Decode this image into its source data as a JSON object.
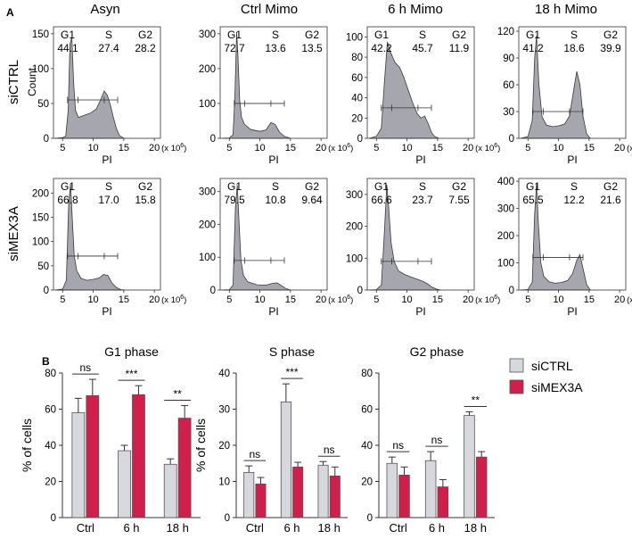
{
  "panel_labels": {
    "a": "A",
    "b": "B"
  },
  "column_titles": [
    "Asyn",
    "Ctrl Mimo",
    "6 h Mimo",
    "18 h Mimo"
  ],
  "row_labels": [
    {
      "main": "siCTRL",
      "sub": "Count"
    },
    {
      "main": "siMEX3A",
      "sub": ""
    }
  ],
  "phase_header": [
    "G1",
    "S",
    "G2"
  ],
  "x_axis_label": "PI",
  "x_multiplier": "(x 10",
  "x_multiplier_exp": "6",
  "x_multiplier_close": ")",
  "colors": {
    "histogram_fill": "#a6a6ae",
    "histogram_stroke": "#3a3a3a",
    "siCTRL": "#d7d7de",
    "siMEX3A": "#cf1f4a",
    "axis": "#333333"
  },
  "chart_data": [
    {
      "type": "area",
      "title": "Cell cycle flow cytometry histograms (PI staining)",
      "xlabel": "PI (x 10^6)",
      "ylabel": "Count",
      "x_ticks": [
        5,
        10,
        15,
        20
      ],
      "xlim": [
        3.5,
        21
      ],
      "panels": [
        {
          "row": "siCTRL",
          "column": "Asyn",
          "ylim": [
            0,
            160
          ],
          "y_ticks": [
            0,
            50,
            100,
            150
          ],
          "G1": "44.1",
          "S": "27.4",
          "G2": "28.2",
          "gate_y": 55,
          "x": [
            3.8,
            5.0,
            5.5,
            5.9,
            6.2,
            6.5,
            6.8,
            7.1,
            7.6,
            8.5,
            9.5,
            10.5,
            11.2,
            11.8,
            12.3,
            12.8,
            13.3,
            13.8,
            14.3,
            15.0
          ],
          "y": [
            0,
            1,
            3,
            40,
            135,
            145,
            80,
            40,
            30,
            33,
            36,
            42,
            55,
            68,
            62,
            48,
            30,
            14,
            4,
            0
          ]
        },
        {
          "row": "siCTRL",
          "column": "Ctrl Mimo",
          "ylim": [
            0,
            320
          ],
          "y_ticks": [
            0,
            100,
            200,
            300
          ],
          "G1": "72.7",
          "S": "13.6",
          "G2": "13.5",
          "gate_y": 100,
          "x": [
            3.8,
            5.0,
            5.6,
            5.9,
            6.2,
            6.4,
            6.7,
            7.0,
            7.5,
            8.5,
            10.0,
            11.0,
            11.8,
            12.5,
            13.2,
            14.0,
            15.0
          ],
          "y": [
            0,
            1,
            10,
            120,
            305,
            240,
            110,
            60,
            40,
            25,
            20,
            24,
            45,
            40,
            18,
            6,
            0
          ]
        },
        {
          "row": "siCTRL",
          "column": "6 h Mimo",
          "ylim": [
            0,
            110
          ],
          "y_ticks": [
            0,
            20,
            40,
            60,
            80,
            100
          ],
          "G1": "42.2",
          "S": "45.7",
          "G2": "11.9",
          "gate_y": 30,
          "x": [
            3.8,
            5.0,
            5.8,
            6.3,
            6.8,
            7.3,
            8.0,
            8.8,
            9.5,
            10.3,
            11.0,
            11.7,
            12.3,
            12.9,
            13.5,
            14.0,
            14.5,
            15.2
          ],
          "y": [
            0,
            2,
            10,
            55,
            95,
            85,
            75,
            70,
            60,
            46,
            34,
            24,
            20,
            22,
            14,
            6,
            2,
            0
          ]
        },
        {
          "row": "siCTRL",
          "column": "18 h Mimo",
          "ylim": [
            0,
            125
          ],
          "y_ticks": [
            0,
            30,
            60,
            90,
            120
          ],
          "G1": "41.2",
          "S": "18.6",
          "G2": "39.9",
          "gate_y": 30,
          "x": [
            3.8,
            5.0,
            5.7,
            6.1,
            6.4,
            6.8,
            7.3,
            8.0,
            9.0,
            10.0,
            11.0,
            11.8,
            12.5,
            13.0,
            13.5,
            14.0,
            14.6,
            15.2
          ],
          "y": [
            0,
            2,
            20,
            90,
            115,
            60,
            24,
            15,
            13,
            14,
            16,
            25,
            55,
            75,
            60,
            25,
            5,
            0
          ]
        },
        {
          "row": "siMEX3A",
          "column": "Asyn",
          "ylim": [
            0,
            230
          ],
          "y_ticks": [
            0,
            50,
            100,
            150,
            200
          ],
          "G1": "66.8",
          "S": "17.0",
          "G2": "15.8",
          "gate_y": 70,
          "x": [
            3.8,
            5.0,
            5.6,
            6.0,
            6.3,
            6.6,
            6.9,
            7.3,
            8.0,
            9.0,
            10.0,
            11.0,
            11.7,
            12.4,
            13.1,
            13.8,
            14.5,
            15.2
          ],
          "y": [
            0,
            2,
            20,
            180,
            218,
            140,
            70,
            40,
            24,
            20,
            22,
            25,
            32,
            30,
            14,
            5,
            1,
            0
          ]
        },
        {
          "row": "siMEX3A",
          "column": "Ctrl Mimo",
          "ylim": [
            0,
            340
          ],
          "y_ticks": [
            0,
            100,
            200,
            300
          ],
          "G1": "79.5",
          "S": "10.8",
          "G2": "9.64",
          "gate_y": 90,
          "x": [
            3.8,
            5.0,
            5.6,
            6.0,
            6.3,
            6.6,
            6.9,
            7.3,
            8.0,
            9.5,
            11.0,
            12.0,
            12.8,
            13.5,
            14.2,
            15.0
          ],
          "y": [
            0,
            1,
            15,
            250,
            320,
            200,
            90,
            45,
            25,
            16,
            15,
            20,
            22,
            14,
            5,
            0
          ]
        },
        {
          "row": "siMEX3A",
          "column": "6 h Mimo",
          "ylim": [
            0,
            350
          ],
          "y_ticks": [
            0,
            100,
            200,
            300
          ],
          "G1": "66.6",
          "S": "23.7",
          "G2": "7.55",
          "gate_y": 90,
          "x": [
            3.8,
            5.0,
            5.8,
            6.3,
            6.7,
            7.0,
            7.4,
            7.9,
            8.6,
            9.5,
            10.5,
            11.5,
            12.5,
            13.3,
            14.0,
            14.8,
            15.5
          ],
          "y": [
            0,
            1,
            15,
            180,
            330,
            260,
            150,
            90,
            60,
            50,
            42,
            35,
            28,
            20,
            10,
            3,
            0
          ]
        },
        {
          "row": "siMEX3A",
          "column": "18 h Mimo",
          "ylim": [
            0,
            410
          ],
          "y_ticks": [
            0,
            100,
            200,
            300,
            400
          ],
          "G1": "65.5",
          "S": "12.2",
          "G2": "21.6",
          "gate_y": 120,
          "x": [
            3.8,
            5.0,
            5.7,
            6.1,
            6.4,
            6.7,
            7.1,
            7.6,
            8.5,
            9.5,
            10.5,
            11.5,
            12.3,
            13.0,
            13.5,
            14.0,
            14.6,
            15.2
          ],
          "y": [
            0,
            2,
            30,
            280,
            390,
            250,
            100,
            50,
            30,
            25,
            28,
            35,
            60,
            110,
            130,
            80,
            20,
            0
          ]
        }
      ]
    },
    {
      "type": "bar",
      "title": "G1 phase",
      "ylabel": "% of cells",
      "categories": [
        "Ctrl",
        "6 h",
        "18 h"
      ],
      "ylim": [
        0,
        80
      ],
      "y_ticks": [
        0,
        20,
        40,
        60,
        80
      ],
      "series": [
        {
          "name": "siCTRL",
          "values": [
            58,
            37,
            29.5
          ],
          "errors": [
            8,
            3,
            3
          ]
        },
        {
          "name": "siMEX3A",
          "values": [
            67.5,
            68,
            55
          ],
          "errors": [
            9,
            5,
            7
          ]
        }
      ],
      "significance": [
        "ns",
        "***",
        "**"
      ]
    },
    {
      "type": "bar",
      "title": "S phase",
      "ylabel": "% of cells",
      "categories": [
        "Ctrl",
        "6 h",
        "18 h"
      ],
      "ylim": [
        0,
        40
      ],
      "y_ticks": [
        0,
        10,
        20,
        30,
        40
      ],
      "series": [
        {
          "name": "siCTRL",
          "values": [
            12.5,
            32,
            14.5
          ],
          "errors": [
            1.8,
            5,
            1
          ]
        },
        {
          "name": "siMEX3A",
          "values": [
            9.3,
            14,
            11.5
          ],
          "errors": [
            1.8,
            1.3,
            2.5
          ]
        }
      ],
      "significance": [
        "ns",
        "***",
        "ns"
      ]
    },
    {
      "type": "bar",
      "title": "G2 phase",
      "ylabel": "",
      "categories": [
        "Ctrl",
        "6 h",
        "18 h"
      ],
      "ylim": [
        0,
        80
      ],
      "y_ticks": [
        0,
        20,
        40,
        60,
        80
      ],
      "series": [
        {
          "name": "siCTRL",
          "values": [
            30,
            31.5,
            56.5
          ],
          "errors": [
            3.5,
            5,
            2
          ]
        },
        {
          "name": "siMEX3A",
          "values": [
            23.5,
            17,
            33.5
          ],
          "errors": [
            4.5,
            4,
            3
          ]
        }
      ],
      "significance": [
        "ns",
        "ns",
        "**"
      ],
      "legend": [
        "siCTRL",
        "siMEX3A"
      ],
      "legend_position": "top-right"
    }
  ]
}
